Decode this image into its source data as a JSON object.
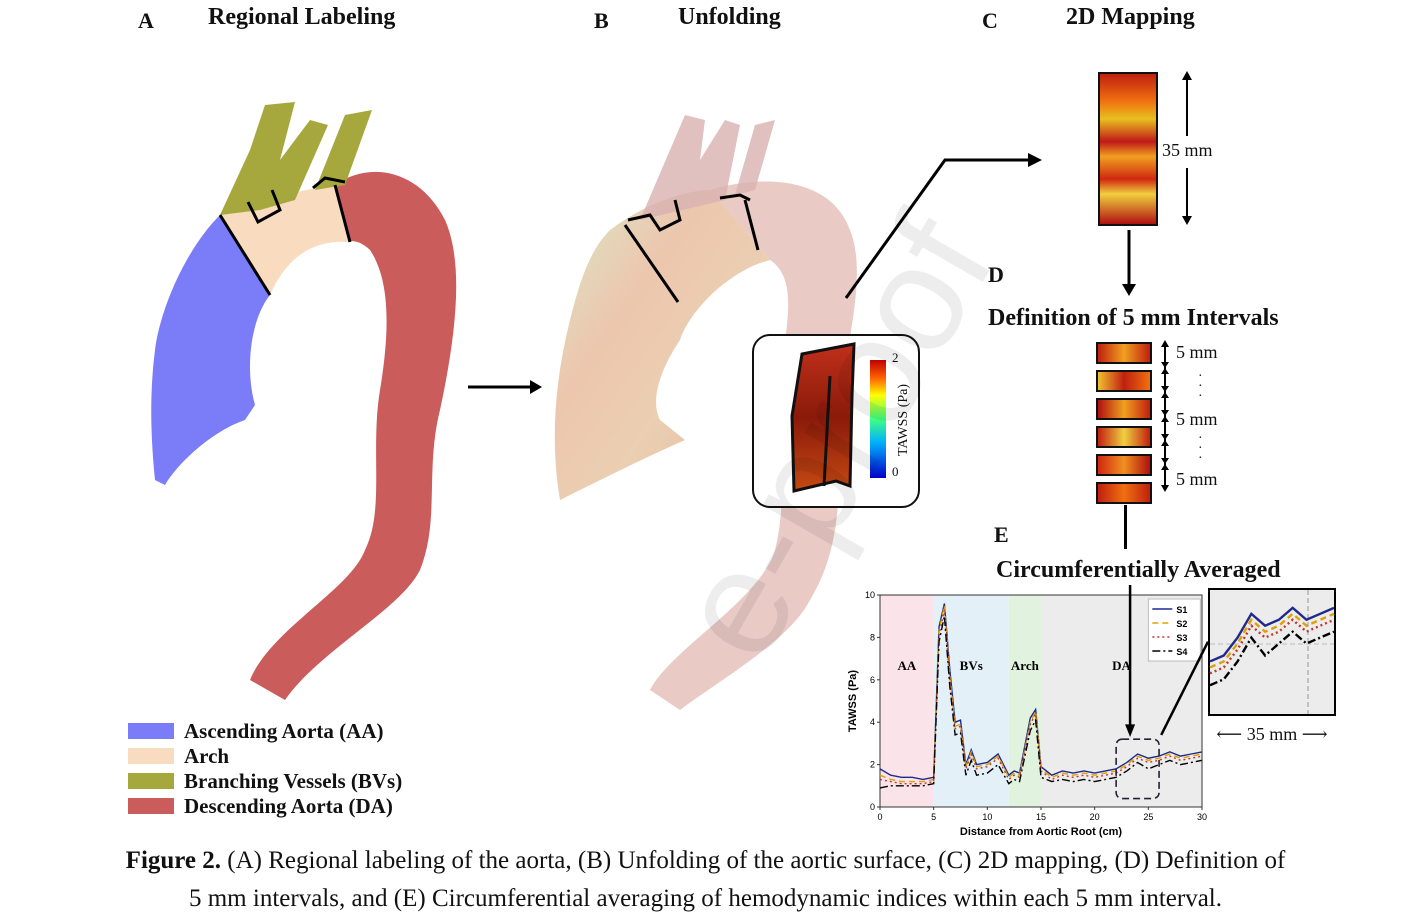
{
  "panels": {
    "a_letter": "A",
    "a_title": "Regional Labeling",
    "b_letter": "B",
    "b_title": "Unfolding",
    "c_letter": "C",
    "c_title": "2D Mapping",
    "d_letter": "D",
    "d_title": "Definition of 5 mm Intervals",
    "e_letter": "E",
    "e_title": "Circumferentially Averaged"
  },
  "legend": [
    {
      "label": "Ascending Aorta (AA)",
      "color": "#7b7cf7"
    },
    {
      "label": "Arch",
      "color": "#f9dcc0"
    },
    {
      "label": "Branching Vessels (BVs)",
      "color": "#a6a83e"
    },
    {
      "label": "Descending Aorta (DA)",
      "color": "#cb5c5c"
    }
  ],
  "colorbar": {
    "label": "TAWSS (Pa)",
    "max": "2",
    "min": "0"
  },
  "dims": {
    "map_height": "35 mm",
    "interval_top": "5 mm",
    "interval_mid": "5 mm",
    "interval_bottom": "5 mm",
    "zoom_width": "35 mm"
  },
  "chart_data": {
    "type": "line",
    "xlabel": "Distance from Aortic Root (cm)",
    "ylabel": "TAWSS (Pa)",
    "xlim": [
      0,
      30
    ],
    "ylim": [
      0,
      10
    ],
    "xticks": [
      "0",
      "5",
      "10",
      "15",
      "20",
      "25",
      "30"
    ],
    "yticks": [
      "0",
      "2",
      "4",
      "6",
      "8",
      "10"
    ],
    "regions": [
      {
        "label": "AA",
        "from": 0,
        "to": 5,
        "color": "#fbe3ea"
      },
      {
        "label": "BVs",
        "from": 5,
        "to": 12,
        "color": "#e3f0f7"
      },
      {
        "label": "Arch",
        "from": 12,
        "to": 15,
        "color": "#e1f3de"
      },
      {
        "label": "DA",
        "from": 15,
        "to": 30,
        "color": "#ececec"
      }
    ],
    "x": [
      0,
      1,
      2,
      3,
      4,
      5,
      5.5,
      6,
      6.5,
      7,
      7.5,
      8,
      8.5,
      9,
      10,
      11,
      12,
      12.5,
      13,
      14,
      14.5,
      15,
      15.5,
      16,
      17,
      18,
      19,
      20,
      21,
      22,
      23,
      24,
      25,
      26,
      27,
      28,
      29,
      30
    ],
    "series": [
      {
        "name": "S1",
        "color": "#1f2a8a",
        "dash": "",
        "values": [
          1.8,
          1.5,
          1.4,
          1.4,
          1.3,
          1.4,
          8.5,
          9.6,
          6.5,
          4.0,
          4.1,
          2.0,
          2.7,
          2.0,
          2.1,
          2.5,
          1.5,
          1.7,
          1.6,
          4.2,
          4.6,
          1.9,
          1.7,
          1.5,
          1.7,
          1.6,
          1.7,
          1.6,
          1.7,
          1.8,
          2.1,
          2.5,
          2.3,
          2.4,
          2.6,
          2.4,
          2.5,
          2.6
        ]
      },
      {
        "name": "S2",
        "color": "#e0a000",
        "dash": "6,4",
        "values": [
          1.5,
          1.3,
          1.2,
          1.2,
          1.2,
          1.3,
          8.3,
          9.5,
          6.2,
          3.8,
          3.9,
          1.9,
          2.6,
          1.9,
          2.0,
          2.4,
          1.4,
          1.6,
          1.5,
          4.0,
          4.5,
          1.8,
          1.6,
          1.4,
          1.6,
          1.5,
          1.6,
          1.5,
          1.6,
          1.7,
          2.0,
          2.4,
          2.2,
          2.3,
          2.5,
          2.3,
          2.4,
          2.5
        ]
      },
      {
        "name": "S3",
        "color": "#c0392b",
        "dash": "2,3",
        "values": [
          1.3,
          1.2,
          1.1,
          1.1,
          1.1,
          1.2,
          8.1,
          9.3,
          6.0,
          3.7,
          3.8,
          1.8,
          2.5,
          1.8,
          1.9,
          2.3,
          1.3,
          1.5,
          1.4,
          3.9,
          4.4,
          1.7,
          1.5,
          1.3,
          1.5,
          1.4,
          1.5,
          1.4,
          1.5,
          1.6,
          1.9,
          2.3,
          2.1,
          2.2,
          2.4,
          2.2,
          2.3,
          2.4
        ]
      },
      {
        "name": "S4",
        "color": "#000000",
        "dash": "8,3,2,3",
        "values": [
          0.9,
          1.0,
          1.0,
          1.0,
          1.0,
          1.1,
          7.8,
          9.0,
          5.7,
          3.4,
          3.5,
          1.5,
          2.2,
          1.5,
          1.6,
          2.0,
          1.1,
          1.3,
          1.2,
          3.6,
          4.1,
          1.4,
          1.3,
          1.2,
          1.3,
          1.2,
          1.3,
          1.2,
          1.3,
          1.4,
          1.7,
          2.1,
          1.8,
          2.0,
          2.2,
          2.0,
          2.1,
          2.2
        ]
      }
    ]
  },
  "caption": {
    "label": "Figure 2.",
    "line1": "(A) Regional labeling of the aorta, (B) Unfolding of the aortic surface, (C) 2D mapping, (D) Definition of",
    "line2": "5 mm intervals, and (E) Circumferential averaging of hemodynamic indices within each 5 mm interval."
  },
  "watermark": "e-proof"
}
